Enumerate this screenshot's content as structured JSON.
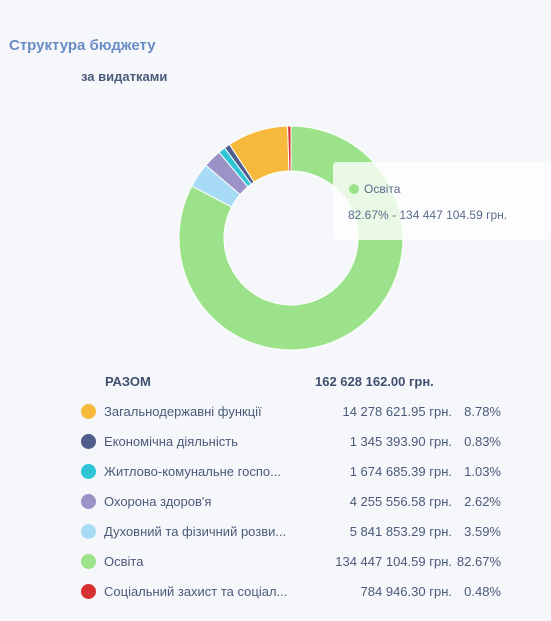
{
  "header": {
    "title": "Структура бюджету",
    "subtitle": "за видатками"
  },
  "tooltip": {
    "name": "Освіта",
    "value": "82.67% - 134 447 104.59 грн.",
    "color": "#9be28a"
  },
  "total": {
    "label": "РАЗОМ",
    "value": "162 628 162.00 грн."
  },
  "chart_data": {
    "type": "pie",
    "donut": true,
    "start_label": "Освіта",
    "series": [
      {
        "name": "Загальнодержавні функції",
        "amount": "14 278 621.95 грн.",
        "percent_label": "8.78%",
        "value": 8.78,
        "color": "#f6b93b"
      },
      {
        "name": "Економічна діяльність",
        "amount": "1 345 393.90 грн.",
        "percent_label": "0.83%",
        "value": 0.83,
        "color": "#4e5d8c"
      },
      {
        "name": "Житлово-комунальне господарство",
        "display_name": "Житлово-комунальне госпо...",
        "amount": "1 674 685.39 грн.",
        "percent_label": "1.03%",
        "value": 1.03,
        "color": "#2fc4d6"
      },
      {
        "name": "Охорона здоров'я",
        "amount": "4 255 556.58 грн.",
        "percent_label": "2.62%",
        "value": 2.62,
        "color": "#9b92c8"
      },
      {
        "name": "Духовний та фізичний розвиток",
        "display_name": "Духовний та фізичний розви...",
        "amount": "5 841 853.29 грн.",
        "percent_label": "3.59%",
        "value": 3.59,
        "color": "#a8dcf6"
      },
      {
        "name": "Освіта",
        "amount": "134 447 104.59 грн.",
        "percent_label": "82.67%",
        "value": 82.67,
        "color": "#9be28a"
      },
      {
        "name": "Соціальний захист та соціальне забезпечення",
        "display_name": "Соціальний захист та соціал...",
        "amount": "784 946.30 грн.",
        "percent_label": "0.48%",
        "value": 0.48,
        "color": "#d63031"
      }
    ]
  }
}
